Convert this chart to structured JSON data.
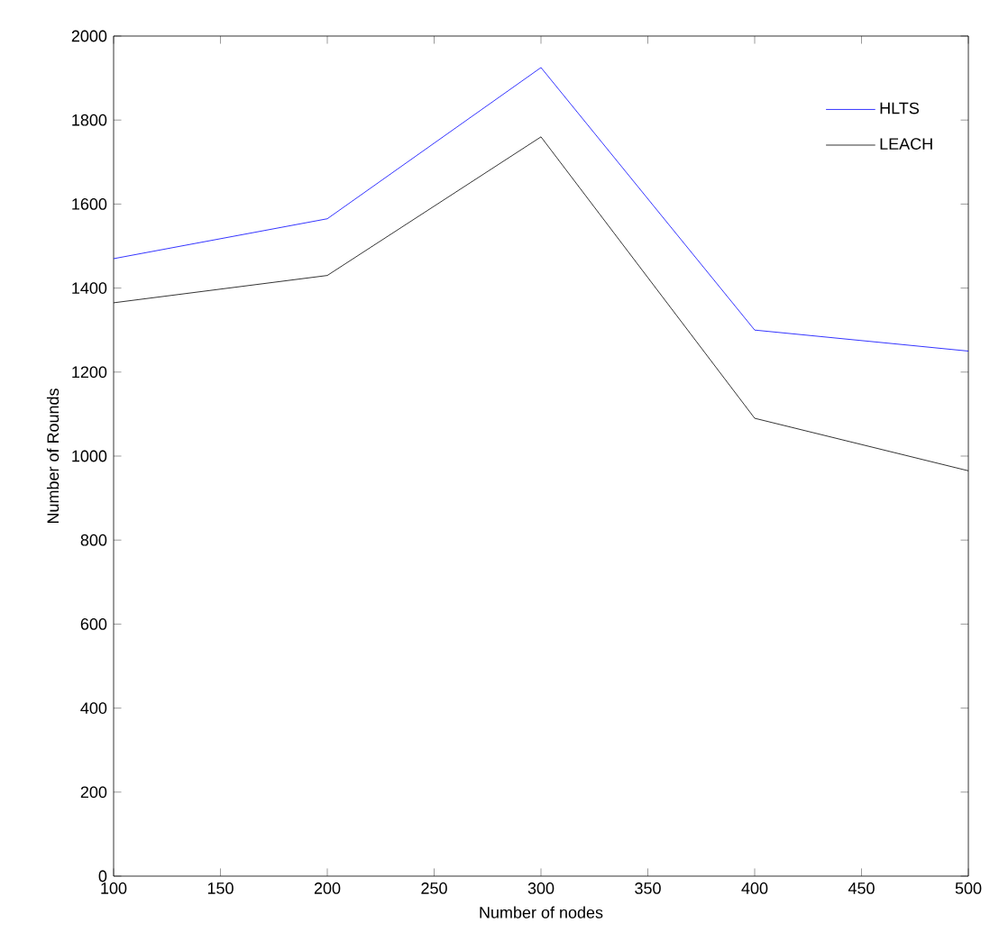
{
  "chart_data": {
    "type": "line",
    "xlabel": "Number of nodes",
    "ylabel": "Number of Rounds",
    "x": [
      100,
      200,
      300,
      400,
      500
    ],
    "series": [
      {
        "name": "HLTS",
        "color": "#0000ff",
        "values": [
          1470,
          1565,
          1925,
          1300,
          1250
        ]
      },
      {
        "name": "LEACH",
        "color": "#000000",
        "values": [
          1365,
          1430,
          1760,
          1090,
          965
        ]
      }
    ],
    "xlim": [
      100,
      500
    ],
    "xticks": [
      100,
      150,
      200,
      250,
      300,
      350,
      400,
      450,
      500
    ],
    "ylim": [
      0,
      2000
    ],
    "yticks": [
      0,
      200,
      400,
      600,
      800,
      1000,
      1200,
      1400,
      1600,
      1800,
      2000
    ],
    "grid": false,
    "legend": "top right",
    "marker": "none",
    "line_style": "solid"
  }
}
